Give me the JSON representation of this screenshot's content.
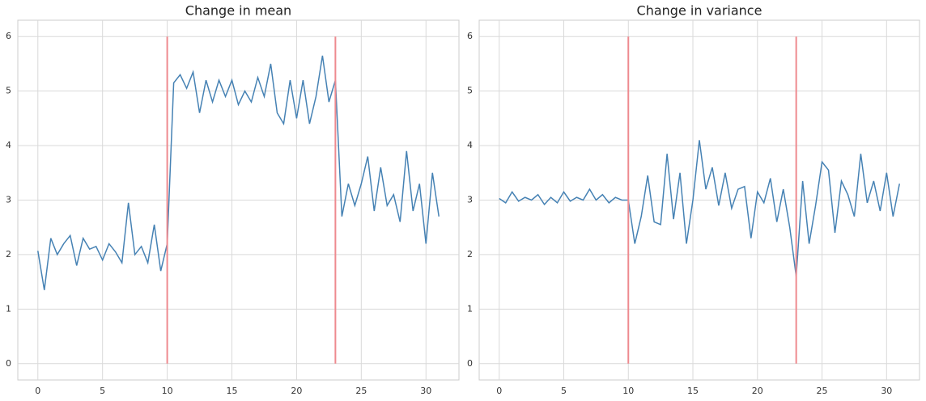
{
  "chart_data": [
    {
      "type": "line",
      "title": "Change in mean",
      "x": [
        0,
        0.5,
        1,
        1.5,
        2,
        2.5,
        3,
        3.5,
        4,
        4.5,
        5,
        5.5,
        6,
        6.5,
        7,
        7.5,
        8,
        8.5,
        9,
        9.5,
        10,
        10.5,
        11,
        11.5,
        12,
        12.5,
        13,
        13.5,
        14,
        14.5,
        15,
        15.5,
        16,
        16.5,
        17,
        17.5,
        18,
        18.5,
        19,
        19.5,
        20,
        20.5,
        21,
        21.5,
        22,
        22.5,
        23,
        23.5,
        24,
        24.5,
        25,
        25.5,
        26,
        26.5,
        27,
        27.5,
        28,
        28.5,
        29,
        29.5,
        30,
        30.5,
        31
      ],
      "series": [
        {
          "color": "#4682b4",
          "values": [
            2.07,
            1.35,
            2.3,
            2.0,
            2.2,
            2.35,
            1.8,
            2.3,
            2.1,
            2.15,
            1.9,
            2.2,
            2.05,
            1.85,
            2.95,
            2.0,
            2.15,
            1.85,
            2.55,
            1.7,
            2.2,
            5.15,
            5.3,
            5.05,
            5.35,
            4.6,
            5.2,
            4.8,
            5.2,
            4.9,
            5.2,
            4.75,
            5.0,
            4.8,
            5.25,
            4.9,
            5.5,
            4.6,
            4.4,
            5.2,
            4.5,
            5.2,
            4.4,
            4.9,
            5.65,
            4.8,
            5.2,
            2.7,
            3.3,
            2.9,
            3.3,
            3.8,
            2.8,
            3.6,
            2.9,
            3.1,
            2.6,
            3.9,
            2.8,
            3.3,
            2.2,
            3.5,
            2.7
          ]
        }
      ],
      "vlines": {
        "x": [
          10,
          23
        ],
        "ymin": 0,
        "ymax": 6,
        "color": "#ee8a8f"
      },
      "xlim": [
        -1.55,
        32.55
      ],
      "xticks": [
        0,
        5,
        10,
        15,
        20,
        25,
        30
      ],
      "ylim": [
        -0.3,
        6.3
      ],
      "yticks": [
        0,
        1,
        2,
        3,
        4,
        5,
        6
      ],
      "grid": true
    },
    {
      "type": "line",
      "title": "Change in variance",
      "x": [
        0,
        0.5,
        1,
        1.5,
        2,
        2.5,
        3,
        3.5,
        4,
        4.5,
        5,
        5.5,
        6,
        6.5,
        7,
        7.5,
        8,
        8.5,
        9,
        9.5,
        10,
        10.5,
        11,
        11.5,
        12,
        12.5,
        13,
        13.5,
        14,
        14.5,
        15,
        15.5,
        16,
        16.5,
        17,
        17.5,
        18,
        18.5,
        19,
        19.5,
        20,
        20.5,
        21,
        21.5,
        22,
        22.5,
        23,
        23.5,
        24,
        24.5,
        25,
        25.5,
        26,
        26.5,
        27,
        27.5,
        28,
        28.5,
        29,
        29.5,
        30,
        30.5,
        31
      ],
      "series": [
        {
          "color": "#4682b4",
          "values": [
            3.03,
            2.95,
            3.15,
            2.98,
            3.05,
            3.0,
            3.1,
            2.92,
            3.05,
            2.95,
            3.15,
            2.98,
            3.05,
            3.0,
            3.2,
            3.0,
            3.1,
            2.95,
            3.05,
            3.0,
            3.0,
            2.2,
            2.7,
            3.45,
            2.6,
            2.55,
            3.85,
            2.65,
            3.5,
            2.2,
            3.0,
            4.1,
            3.2,
            3.6,
            2.9,
            3.5,
            2.85,
            3.2,
            3.25,
            2.3,
            3.15,
            2.95,
            3.4,
            2.6,
            3.2,
            2.5,
            1.6,
            3.35,
            2.2,
            2.9,
            3.7,
            3.55,
            2.4,
            3.35,
            3.1,
            2.7,
            3.85,
            2.95,
            3.35,
            2.8,
            3.5,
            2.7,
            3.3
          ]
        }
      ],
      "vlines": {
        "x": [
          10,
          23
        ],
        "ymin": 0,
        "ymax": 6,
        "color": "#ee8a8f"
      },
      "xlim": [
        -1.55,
        32.55
      ],
      "xticks": [
        0,
        5,
        10,
        15,
        20,
        25,
        30
      ],
      "ylim": [
        -0.3,
        6.3
      ],
      "yticks": [
        0,
        1,
        2,
        3,
        4,
        5,
        6
      ],
      "grid": true
    }
  ]
}
